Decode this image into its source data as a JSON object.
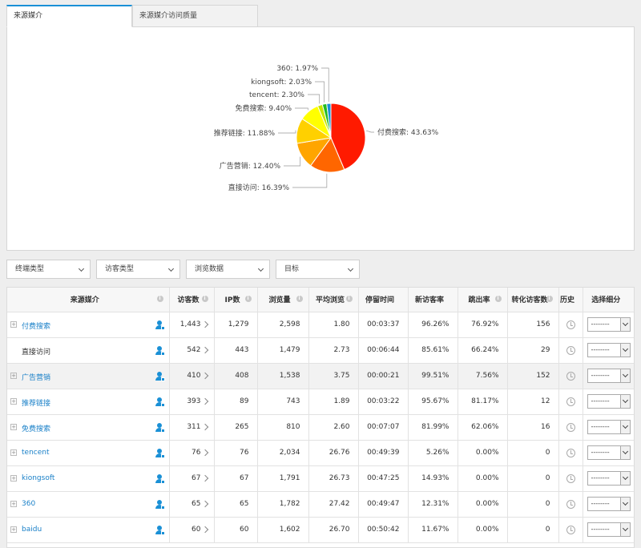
{
  "tabs": [
    {
      "label": "来源媒介"
    },
    {
      "label": "来源媒介访问质量"
    }
  ],
  "filters": [
    {
      "label": "终端类型"
    },
    {
      "label": "访客类型"
    },
    {
      "label": "浏览数据"
    },
    {
      "label": "目标"
    }
  ],
  "columns": [
    {
      "label": "来源媒介",
      "info": true
    },
    {
      "label": "访客数",
      "info": true
    },
    {
      "label": "IP数",
      "info": true
    },
    {
      "label": "浏览量",
      "info": true
    },
    {
      "label": "平均浏览",
      "info": true
    },
    {
      "label": "停留时间",
      "info": false
    },
    {
      "label": "新访客率",
      "info": false
    },
    {
      "label": "跳出率",
      "info": true
    },
    {
      "label": "转化访客数",
      "info": true
    },
    {
      "label": "历史",
      "info": false
    },
    {
      "label": "选择细分",
      "info": false
    }
  ],
  "select_default": "--------",
  "rows": [
    {
      "source": "付费搜索",
      "expandable": true,
      "visitors": "1,443",
      "ip": "1,279",
      "pv": "2,598",
      "avg": "1.80",
      "stay": "00:03:37",
      "new_rate": "96.26%",
      "bounce": "76.92%",
      "conv": "156"
    },
    {
      "source": "直接访问",
      "expandable": false,
      "visitors": "542",
      "ip": "443",
      "pv": "1,479",
      "avg": "2.73",
      "stay": "00:06:44",
      "new_rate": "85.61%",
      "bounce": "66.24%",
      "conv": "29"
    },
    {
      "source": "广告营销",
      "expandable": true,
      "visitors": "410",
      "ip": "408",
      "pv": "1,538",
      "avg": "3.75",
      "stay": "00:00:21",
      "new_rate": "99.51%",
      "bounce": "7.56%",
      "conv": "152"
    },
    {
      "source": "推荐链接",
      "expandable": true,
      "visitors": "393",
      "ip": "89",
      "pv": "743",
      "avg": "1.89",
      "stay": "00:03:22",
      "new_rate": "95.67%",
      "bounce": "81.17%",
      "conv": "12"
    },
    {
      "source": "免费搜索",
      "expandable": true,
      "visitors": "311",
      "ip": "265",
      "pv": "810",
      "avg": "2.60",
      "stay": "00:07:07",
      "new_rate": "81.99%",
      "bounce": "62.06%",
      "conv": "16"
    },
    {
      "source": "tencent",
      "expandable": true,
      "visitors": "76",
      "ip": "76",
      "pv": "2,034",
      "avg": "26.76",
      "stay": "00:49:39",
      "new_rate": "5.26%",
      "bounce": "0.00%",
      "conv": "0"
    },
    {
      "source": "kiongsoft",
      "expandable": true,
      "visitors": "67",
      "ip": "67",
      "pv": "1,791",
      "avg": "26.73",
      "stay": "00:47:25",
      "new_rate": "14.93%",
      "bounce": "0.00%",
      "conv": "0"
    },
    {
      "source": "360",
      "expandable": true,
      "visitors": "65",
      "ip": "65",
      "pv": "1,782",
      "avg": "27.42",
      "stay": "00:49:47",
      "new_rate": "12.31%",
      "bounce": "0.00%",
      "conv": "0"
    },
    {
      "source": "baidu",
      "expandable": true,
      "visitors": "60",
      "ip": "60",
      "pv": "1,602",
      "avg": "26.70",
      "stay": "00:50:42",
      "new_rate": "11.67%",
      "bounce": "0.00%",
      "conv": "0"
    }
  ],
  "colors": {
    "accent": "#1a90d6",
    "link": "#1a80c8"
  },
  "chart_data": {
    "type": "pie",
    "slices": [
      {
        "label": "付费搜索",
        "value": 43.63,
        "display": "付费搜索: 43.63%",
        "color": "#ff1a00"
      },
      {
        "label": "直接访问",
        "value": 16.39,
        "display": "直接访问: 16.39%",
        "color": "#ff6600"
      },
      {
        "label": "广告营销",
        "value": 12.4,
        "display": "广告营销: 12.40%",
        "color": "#ffa500"
      },
      {
        "label": "推荐链接",
        "value": 11.88,
        "display": "推荐链接: 11.88%",
        "color": "#ffd000"
      },
      {
        "label": "免费搜索",
        "value": 9.4,
        "display": "免费搜索: 9.40%",
        "color": "#ffff00"
      },
      {
        "label": "tencent",
        "value": 2.3,
        "display": "tencent: 2.30%",
        "color": "#c8e600"
      },
      {
        "label": "kiongsoft",
        "value": 2.03,
        "display": "kiongsoft: 2.03%",
        "color": "#22bb22"
      },
      {
        "label": "360",
        "value": 1.97,
        "display": "360: 1.97%",
        "color": "#1a90d6"
      }
    ]
  }
}
